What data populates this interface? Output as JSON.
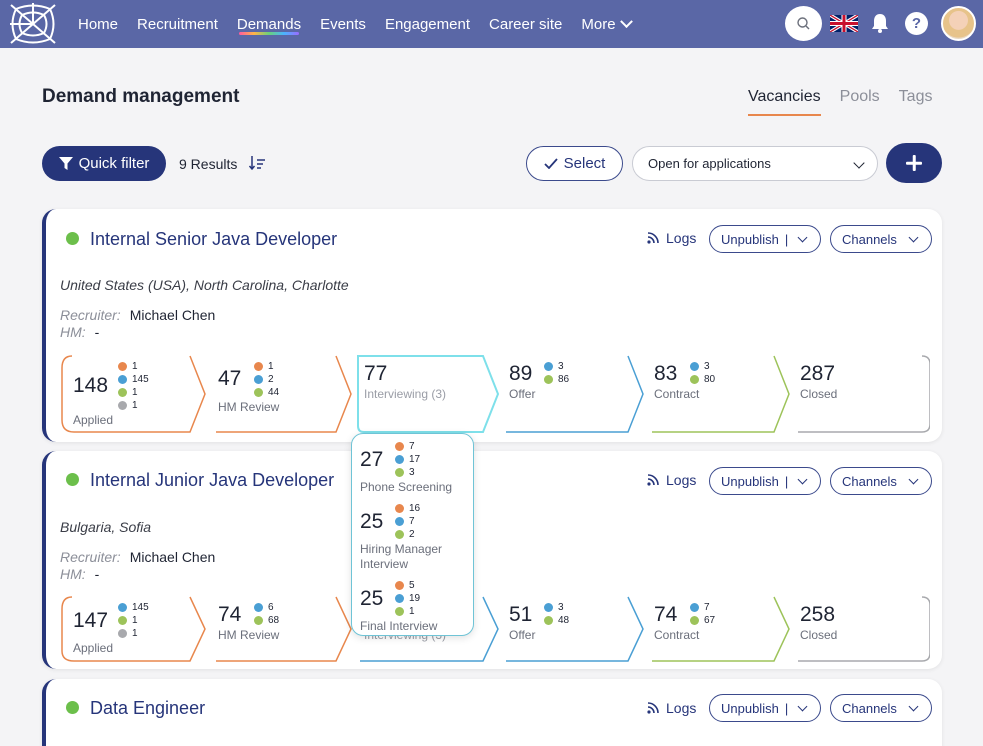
{
  "nav": {
    "items": [
      "Home",
      "Recruitment",
      "Demands",
      "Events",
      "Engagement",
      "Career site",
      "More"
    ],
    "active": "Demands",
    "flag": "uk-flag"
  },
  "page": {
    "title": "Demand management",
    "tabs": [
      "Vacancies",
      "Pools",
      "Tags"
    ],
    "active_tab": "Vacancies"
  },
  "toolbar": {
    "quick_filter": "Quick filter",
    "results": "9 Results",
    "select": "Select",
    "status_filter": "Open for applications"
  },
  "colors": {
    "nav": "#5a67a6",
    "primary": "#26357a",
    "orange": "#e8874d",
    "blue": "#4a9fd4",
    "green": "#9dc35a",
    "gray": "#a8a9ad",
    "status_green": "#6cbf4b"
  },
  "card_actions": {
    "logs": "Logs",
    "unpublish": "Unpublish",
    "channels": "Channels"
  },
  "vacancies": [
    {
      "title": "Internal Senior Java Developer",
      "location": "United States (USA), North Carolina, Charlotte",
      "recruiter_label": "Recruiter:",
      "recruiter": "Michael Chen",
      "hm_label": "HM:",
      "hm": "-",
      "stages": [
        {
          "count": "148",
          "label": "Applied",
          "dots": [
            "1",
            "145",
            "1",
            "1"
          ]
        },
        {
          "count": "47",
          "label": "HM Review",
          "dots": [
            "1",
            "2",
            "44"
          ]
        },
        {
          "count": "77",
          "label": "Interviewing (3)",
          "dots": []
        },
        {
          "count": "89",
          "label": "Offer",
          "dots": [
            "3",
            "86"
          ]
        },
        {
          "count": "83",
          "label": "Contract",
          "dots": [
            "3",
            "80"
          ]
        },
        {
          "count": "287",
          "label": "Closed",
          "dots": []
        }
      ]
    },
    {
      "title": "Internal Junior Java Developer",
      "location": "Bulgaria, Sofia",
      "recruiter_label": "Recruiter:",
      "recruiter": "Michael Chen",
      "hm_label": "HM:",
      "hm": "-",
      "stages": [
        {
          "count": "147",
          "label": "Applied",
          "dots": [
            "145",
            "1",
            "1"
          ]
        },
        {
          "count": "74",
          "label": "HM Review",
          "dots": [
            "6",
            "68"
          ]
        },
        {
          "count": "",
          "label": "Interviewing (3)",
          "dots": []
        },
        {
          "count": "51",
          "label": "Offer",
          "dots": [
            "3",
            "48"
          ]
        },
        {
          "count": "74",
          "label": "Contract",
          "dots": [
            "7",
            "67"
          ]
        },
        {
          "count": "258",
          "label": "Closed",
          "dots": []
        }
      ]
    },
    {
      "title": "Data Engineer"
    }
  ],
  "popover": [
    {
      "count": "27",
      "label": "Phone Screening",
      "dots": [
        "7",
        "17",
        "3"
      ]
    },
    {
      "count": "25",
      "label": "Hiring Manager Interview",
      "dots": [
        "16",
        "7",
        "2"
      ]
    },
    {
      "count": "25",
      "label": "Final Interview",
      "dots": [
        "5",
        "19",
        "1"
      ]
    }
  ]
}
